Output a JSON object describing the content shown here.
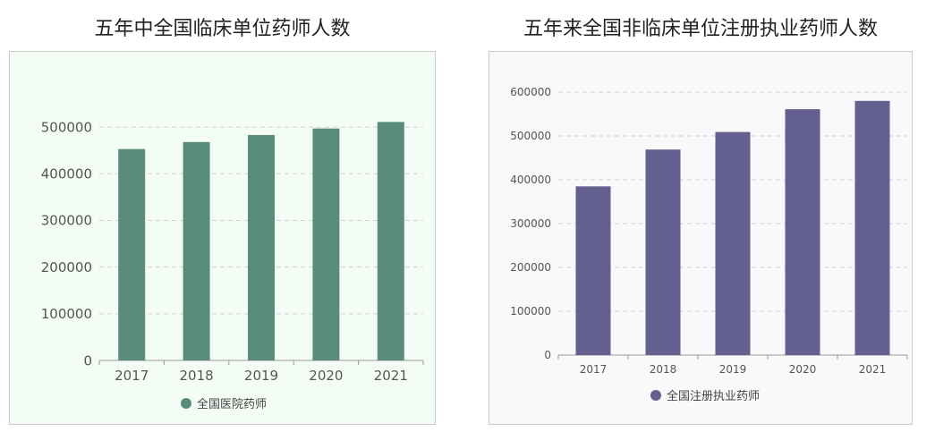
{
  "chart_data": [
    {
      "type": "bar",
      "title": "五年中全国临床单位药师人数",
      "categories": [
        "2017",
        "2018",
        "2019",
        "2020",
        "2021"
      ],
      "series": [
        {
          "name": "全国医院药师",
          "values": [
            453000,
            468000,
            483000,
            497000,
            511000
          ]
        }
      ],
      "yticks": [
        "0",
        "100000",
        "200000",
        "300000",
        "400000",
        "500000"
      ],
      "ylim": [
        0,
        550000
      ],
      "grid": true,
      "legend": "bottom",
      "color": "#5a8c7d",
      "background": "#f4fdf5"
    },
    {
      "type": "bar",
      "title": "五年来全国非临床单位注册执业药师人数",
      "categories": [
        "2017",
        "2018",
        "2019",
        "2020",
        "2021"
      ],
      "series": [
        {
          "name": "全国注册执业药师",
          "values": [
            385000,
            469000,
            509000,
            561000,
            580000
          ]
        }
      ],
      "yticks": [
        "0",
        "100000",
        "200000",
        "300000",
        "400000",
        "500000",
        "600000"
      ],
      "ylim": [
        0,
        600000
      ],
      "grid": true,
      "legend": "bottom",
      "color": "#636090",
      "background": "#faf8fa"
    }
  ]
}
